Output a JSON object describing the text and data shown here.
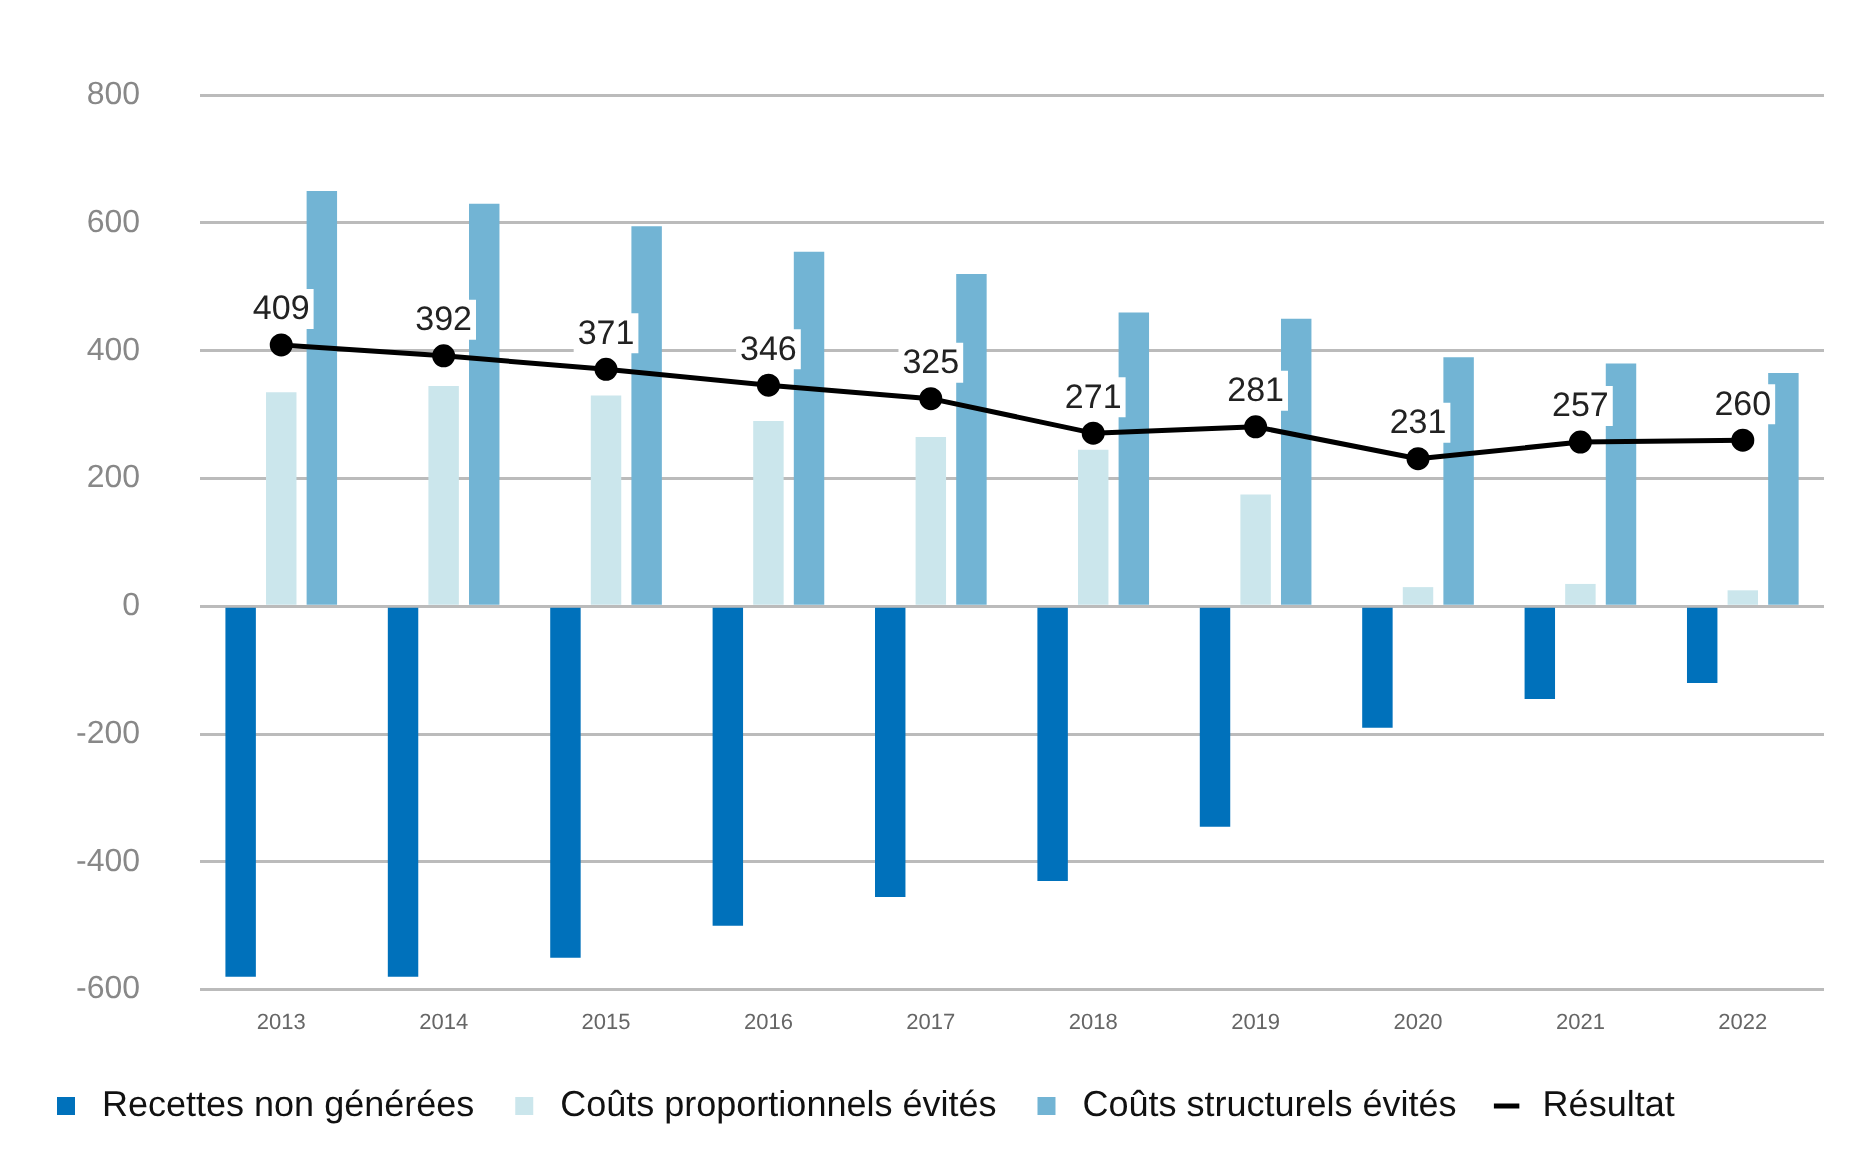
{
  "chart_data": {
    "type": "bar",
    "categories": [
      "2013",
      "2014",
      "2015",
      "2016",
      "2017",
      "2018",
      "2019",
      "2020",
      "2021",
      "2022"
    ],
    "series": [
      {
        "name": "Recettes non générées",
        "color": "#0071bb",
        "values": [
          -580,
          -580,
          -550,
          -500,
          -455,
          -430,
          -345,
          -190,
          -145,
          -120
        ]
      },
      {
        "name": "Coûts proportionnels évités",
        "color": "#cbe6ec",
        "values": [
          335,
          345,
          330,
          290,
          265,
          245,
          175,
          30,
          35,
          25
        ]
      },
      {
        "name": "Coûts structurels évités",
        "color": "#72b4d4",
        "values": [
          650,
          630,
          595,
          555,
          520,
          460,
          450,
          390,
          380,
          365
        ]
      },
      {
        "name": "Résultat",
        "type": "line",
        "color": "#000000",
        "values": [
          409,
          392,
          371,
          346,
          325,
          271,
          281,
          231,
          257,
          260
        ],
        "value_labels": [
          "409",
          "392",
          "371",
          "346",
          "325",
          "271",
          "281",
          "231",
          "257",
          "260"
        ]
      }
    ],
    "ylim": [
      -600,
      800
    ],
    "yticks": [
      -600,
      -400,
      -200,
      0,
      200,
      400,
      600,
      800
    ],
    "grid": "y",
    "legend": "bottom",
    "marker": "circle",
    "line_style": "solid"
  }
}
